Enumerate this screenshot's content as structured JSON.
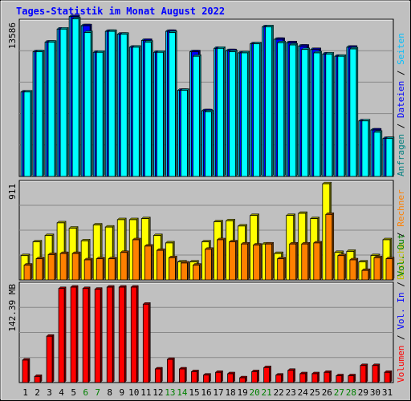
{
  "chart_data": {
    "type": "bar",
    "title": "Tages-Statistik im Monat August 2022",
    "categories": [
      "1",
      "2",
      "3",
      "4",
      "5",
      "6",
      "7",
      "8",
      "9",
      "10",
      "11",
      "12",
      "13",
      "14",
      "15",
      "16",
      "17",
      "18",
      "19",
      "20",
      "21",
      "22",
      "23",
      "24",
      "25",
      "26",
      "27",
      "28",
      "29",
      "30",
      "31"
    ],
    "weekend_days": [
      "6",
      "7",
      "13",
      "14",
      "20",
      "21",
      "27",
      "28"
    ],
    "colors": {
      "title": "#0000ff",
      "plot_bg": "#c0c0c0",
      "frame_bg": "#ffffff",
      "grid": "#888888",
      "hits": "#00c0ff",
      "files": "#0000ff",
      "pages": "#00ffff",
      "visits": "#ffff00",
      "sites": "#ff8000",
      "kbytes": "#ff0000",
      "weekday_label": "#000000",
      "weekend_label": "#008000"
    },
    "panels": [
      {
        "id": "requests",
        "ymax_label": "13586",
        "ymax": 13586,
        "series": [
          {
            "key": "hits",
            "values": [
              7450,
              11000,
              11850,
              13000,
              14100,
              13300,
              10950,
              12800,
              12550,
              11400,
              12000,
              10950,
              12800,
              7600,
              11000,
              5800,
              11300,
              11100,
              10900,
              11700,
              13200,
              12100,
              11800,
              11500,
              11200,
              10800,
              10600,
              11400,
              4900,
              4100,
              3350
            ]
          },
          {
            "key": "files",
            "values": [
              7450,
              11000,
              11850,
              13000,
              14100,
              13300,
              10950,
              12800,
              12550,
              11400,
              12000,
              10950,
              12800,
              7600,
              11000,
              5800,
              11300,
              11100,
              10900,
              11700,
              13200,
              12100,
              11800,
              11500,
              11200,
              10800,
              10600,
              11400,
              4900,
              4100,
              3350
            ]
          },
          {
            "key": "pages",
            "values": [
              7450,
              11000,
              11850,
              13000,
              13900,
              12700,
              10950,
              12800,
              12550,
              11400,
              11850,
              10950,
              12700,
              7600,
              10600,
              5700,
              11300,
              11000,
              10900,
              11700,
              13200,
              11800,
              11600,
              11200,
              10900,
              10800,
              10600,
              11250,
              4900,
              3900,
              3350
            ]
          }
        ],
        "legend": [
          {
            "text": "Anfragen",
            "color": "#008080"
          },
          {
            "text": "Dateien",
            "color": "#0000ff"
          },
          {
            "text": "Seiten",
            "color": "#00c0ff"
          }
        ]
      },
      {
        "id": "visits",
        "ymax_label": "911",
        "ymax": 911,
        "series": [
          {
            "key": "visits",
            "values": [
              230,
              360,
              420,
              540,
              490,
              370,
              520,
              500,
              570,
              570,
              580,
              420,
              350,
              170,
              170,
              360,
              550,
              560,
              510,
              610,
              340,
              250,
              610,
              630,
              580,
              910,
              260,
              270,
              170,
              230,
              380
            ]
          },
          {
            "key": "sites",
            "values": [
              140,
              200,
              240,
              250,
              250,
              190,
              200,
              200,
              260,
              380,
              320,
              280,
              210,
              160,
              140,
              290,
              380,
              360,
              340,
              330,
              340,
              200,
              340,
              340,
              350,
              620,
              230,
              190,
              90,
              210,
              200
            ]
          }
        ],
        "legend": [
          {
            "text": "Besuche",
            "color": "#c0c000"
          },
          {
            "text": "Rechner",
            "color": "#ff8000"
          }
        ]
      },
      {
        "id": "volume",
        "ymax_label": "142.39 MB",
        "ymax": 142.39,
        "series": [
          {
            "key": "kbytes",
            "values": [
              33,
              9,
              68,
              138,
              140,
              138,
              137,
              140,
              140,
              140,
              115,
              20,
              34,
              20,
              16,
              11,
              15,
              13,
              7,
              16,
              22,
              11,
              18,
              13,
              13,
              15,
              10,
              10,
              25,
              25,
              15
            ]
          }
        ],
        "legend": [
          {
            "text": "Volumen",
            "color": "#ff0000"
          },
          {
            "text": "Vol. In",
            "color": "#0000ff"
          },
          {
            "text": "Vol. Out",
            "color": "#008000"
          }
        ]
      }
    ]
  }
}
